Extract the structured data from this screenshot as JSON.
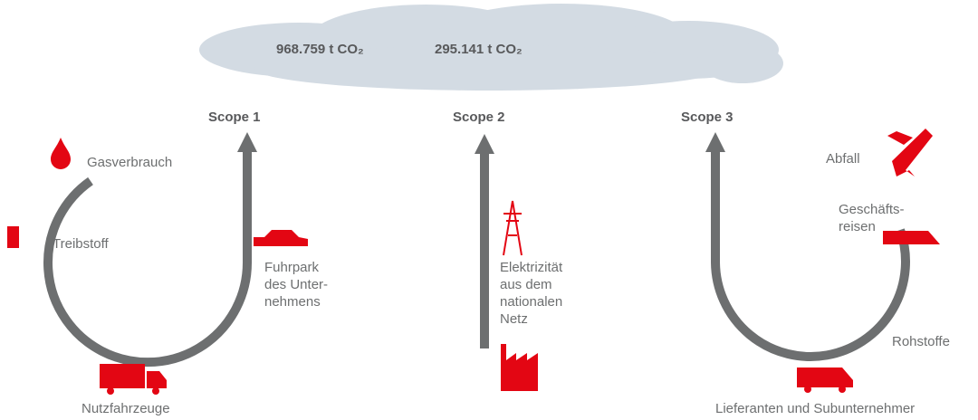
{
  "cloud": {
    "values": [
      "968.759 t CO₂",
      "295.141 t CO₂"
    ]
  },
  "scopes": [
    "Scope 1",
    "Scope 2",
    "Scope 3"
  ],
  "labels": [
    {
      "lines": [
        "Gasverbrauch"
      ]
    },
    {
      "lines": [
        "Treibstoff"
      ]
    },
    {
      "lines": [
        "Fuhrpark",
        "des Unter-",
        "nehmens"
      ]
    },
    {
      "lines": [
        "Nutzfahrzeuge"
      ]
    },
    {
      "lines": [
        "Elektrizität",
        "aus dem",
        "nationalen",
        "Netz"
      ]
    },
    {
      "lines": [
        "Abfall"
      ]
    },
    {
      "lines": [
        "Geschäfts-",
        "reisen"
      ]
    },
    {
      "lines": [
        "Rohstoffe"
      ]
    },
    {
      "lines": [
        "Lieferanten und Subunternehmer"
      ]
    }
  ]
}
